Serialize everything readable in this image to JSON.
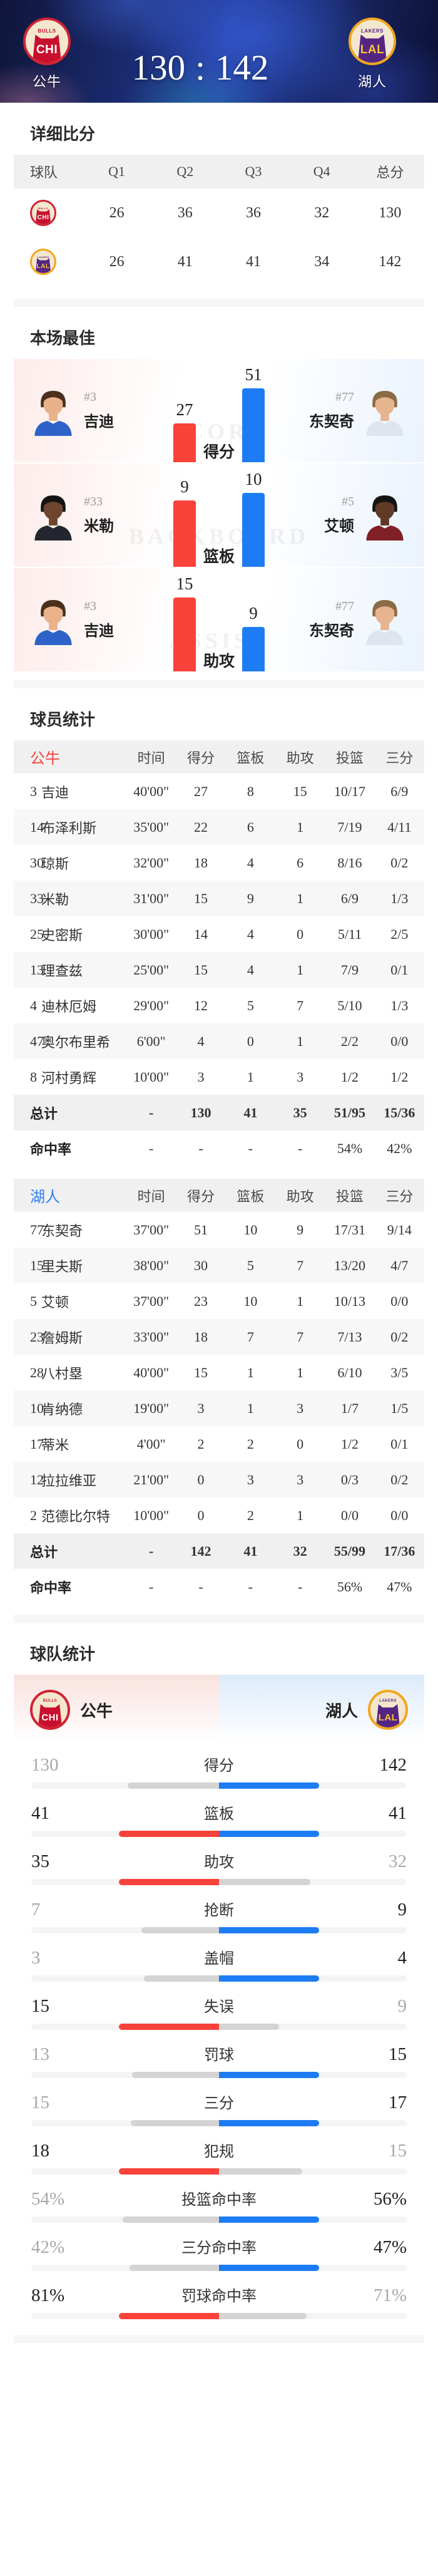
{
  "colors": {
    "bulls_red": "#f8423a",
    "lakers_blue": "#1d7cf3",
    "neutral_bar": "#d4d4d4",
    "bulls_crest_ring": "#cf2433",
    "bulls_jersey": "#c8102e",
    "lakers_crest_ring": "#f2a71e",
    "lakers_purple": "#552583"
  },
  "header": {
    "left_team": {
      "name": "公牛",
      "abbr": "CHI",
      "league": "BULLS"
    },
    "right_team": {
      "name": "湖人",
      "abbr": "LAL",
      "league": "LAKERS"
    },
    "score_left": "130",
    "score_separator": ":",
    "score_right": "142"
  },
  "sections": {
    "detailed_score": "详细比分",
    "best_of_game": "本场最佳",
    "player_stats": "球员统计",
    "team_stats": "球队统计"
  },
  "quarter_table": {
    "headers": [
      "球队",
      "Q1",
      "Q2",
      "Q3",
      "Q4",
      "总分"
    ],
    "rows": [
      {
        "team": "公牛",
        "abbr": "CHI",
        "league": "BULLS",
        "values": [
          "26",
          "36",
          "36",
          "32",
          "130"
        ]
      },
      {
        "team": "湖人",
        "abbr": "LAL",
        "league": "LAKERS",
        "values": [
          "26",
          "41",
          "41",
          "34",
          "142"
        ]
      }
    ]
  },
  "best_players": {
    "rows": [
      {
        "metric": "得分",
        "watermark": "SCORE",
        "left": {
          "num": "#3",
          "name": "吉迪",
          "value": 27,
          "avatar_style": "--skin:#e9b28b;--jersey:#2e62c8;--hair:#4a2f1c"
        },
        "right": {
          "num": "#77",
          "name": "东契奇",
          "value": 51,
          "avatar_style": "--skin:#e6b48f;--jersey:#dfe5ec;--hair:#8a6b45"
        }
      },
      {
        "metric": "篮板",
        "watermark": "BACKBOARD",
        "left": {
          "num": "#33",
          "name": "米勒",
          "value": 9,
          "avatar_style": "--skin:#6e4630;--jersey:#23262e;--hair:#141414"
        },
        "right": {
          "num": "#5",
          "name": "艾顿",
          "value": 10,
          "avatar_style": "--skin:#5f3a27;--jersey:#801f26;--hair:#141414"
        }
      },
      {
        "metric": "助攻",
        "watermark": "ASSIST",
        "left": {
          "num": "#3",
          "name": "吉迪",
          "value": 15,
          "avatar_style": "--skin:#e9b28b;--jersey:#2e62c8;--hair:#4a2f1c"
        },
        "right": {
          "num": "#77",
          "name": "东契奇",
          "value": 9,
          "avatar_style": "--skin:#e6b48f;--jersey:#dfe5ec;--hair:#8a6b45"
        }
      }
    ]
  },
  "player_stats": {
    "columns": [
      "时间",
      "得分",
      "篮板",
      "助攻",
      "投篮",
      "三分"
    ],
    "bulls": {
      "team": "公牛",
      "rows": [
        {
          "num": "3",
          "name": "吉迪",
          "time": "40'00\"",
          "pts": "27",
          "reb": "8",
          "ast": "15",
          "fg": "10/17",
          "tp": "6/9"
        },
        {
          "num": "14",
          "name": "布泽利斯",
          "time": "35'00\"",
          "pts": "22",
          "reb": "6",
          "ast": "1",
          "fg": "7/19",
          "tp": "4/11"
        },
        {
          "num": "30",
          "name": "琼斯",
          "time": "32'00\"",
          "pts": "18",
          "reb": "4",
          "ast": "6",
          "fg": "8/16",
          "tp": "0/2"
        },
        {
          "num": "33",
          "name": "米勒",
          "time": "31'00\"",
          "pts": "15",
          "reb": "9",
          "ast": "1",
          "fg": "6/9",
          "tp": "1/3"
        },
        {
          "num": "25",
          "name": "史密斯",
          "time": "30'00\"",
          "pts": "14",
          "reb": "4",
          "ast": "0",
          "fg": "5/11",
          "tp": "2/5"
        },
        {
          "num": "13",
          "name": "理查兹",
          "time": "25'00\"",
          "pts": "15",
          "reb": "4",
          "ast": "1",
          "fg": "7/9",
          "tp": "0/1"
        },
        {
          "num": "4",
          "name": "迪林厄姆",
          "time": "29'00\"",
          "pts": "12",
          "reb": "5",
          "ast": "7",
          "fg": "5/10",
          "tp": "1/3"
        },
        {
          "num": "47",
          "name": "奥尔布里希",
          "time": "6'00\"",
          "pts": "4",
          "reb": "0",
          "ast": "1",
          "fg": "2/2",
          "tp": "0/0"
        },
        {
          "num": "8",
          "name": "河村勇辉",
          "time": "10'00\"",
          "pts": "3",
          "reb": "1",
          "ast": "3",
          "fg": "1/2",
          "tp": "1/2"
        }
      ],
      "total": {
        "label": "总计",
        "time": "-",
        "pts": "130",
        "reb": "41",
        "ast": "35",
        "fg": "51/95",
        "tp": "15/36"
      },
      "pct": {
        "label": "命中率",
        "time": "-",
        "pts": "-",
        "reb": "-",
        "ast": "-",
        "fg": "54%",
        "tp": "42%"
      }
    },
    "lakers": {
      "team": "湖人",
      "rows": [
        {
          "num": "77",
          "name": "东契奇",
          "time": "37'00\"",
          "pts": "51",
          "reb": "10",
          "ast": "9",
          "fg": "17/31",
          "tp": "9/14"
        },
        {
          "num": "15",
          "name": "里夫斯",
          "time": "38'00\"",
          "pts": "30",
          "reb": "5",
          "ast": "7",
          "fg": "13/20",
          "tp": "4/7"
        },
        {
          "num": "5",
          "name": "艾顿",
          "time": "37'00\"",
          "pts": "23",
          "reb": "10",
          "ast": "1",
          "fg": "10/13",
          "tp": "0/0"
        },
        {
          "num": "23",
          "name": "詹姆斯",
          "time": "33'00\"",
          "pts": "18",
          "reb": "7",
          "ast": "7",
          "fg": "7/13",
          "tp": "0/2"
        },
        {
          "num": "28",
          "name": "八村塁",
          "time": "40'00\"",
          "pts": "15",
          "reb": "1",
          "ast": "1",
          "fg": "6/10",
          "tp": "3/5"
        },
        {
          "num": "10",
          "name": "肯纳德",
          "time": "19'00\"",
          "pts": "3",
          "reb": "1",
          "ast": "3",
          "fg": "1/7",
          "tp": "1/5"
        },
        {
          "num": "17",
          "name": "蒂米",
          "time": "4'00\"",
          "pts": "2",
          "reb": "2",
          "ast": "0",
          "fg": "1/2",
          "tp": "0/1"
        },
        {
          "num": "12",
          "name": "拉拉维亚",
          "time": "21'00\"",
          "pts": "0",
          "reb": "3",
          "ast": "3",
          "fg": "0/3",
          "tp": "0/2"
        },
        {
          "num": "2",
          "name": "范德比尔特",
          "time": "10'00\"",
          "pts": "0",
          "reb": "2",
          "ast": "1",
          "fg": "0/0",
          "tp": "0/0"
        }
      ],
      "total": {
        "label": "总计",
        "time": "-",
        "pts": "142",
        "reb": "41",
        "ast": "32",
        "fg": "55/99",
        "tp": "17/36"
      },
      "pct": {
        "label": "命中率",
        "time": "-",
        "pts": "-",
        "reb": "-",
        "ast": "-",
        "fg": "56%",
        "tp": "47%"
      }
    }
  },
  "team_stats": {
    "left": {
      "name": "公牛",
      "abbr": "CHI",
      "league": "BULLS"
    },
    "right": {
      "name": "湖人",
      "abbr": "LAL",
      "league": "LAKERS"
    },
    "rows": [
      {
        "label": "得分",
        "left": "130",
        "right": "142"
      },
      {
        "label": "篮板",
        "left": "41",
        "right": "41"
      },
      {
        "label": "助攻",
        "left": "35",
        "right": "32"
      },
      {
        "label": "抢断",
        "left": "7",
        "right": "9"
      },
      {
        "label": "盖帽",
        "left": "3",
        "right": "4"
      },
      {
        "label": "失误",
        "left": "15",
        "right": "9"
      },
      {
        "label": "罚球",
        "left": "13",
        "right": "15"
      },
      {
        "label": "三分",
        "left": "15",
        "right": "17"
      },
      {
        "label": "犯规",
        "left": "18",
        "right": "15"
      },
      {
        "label": "投篮命中率",
        "left": "54%",
        "right": "56%"
      },
      {
        "label": "三分命中率",
        "left": "42%",
        "right": "47%"
      },
      {
        "label": "罚球命中率",
        "left": "81%",
        "right": "71%"
      }
    ]
  }
}
